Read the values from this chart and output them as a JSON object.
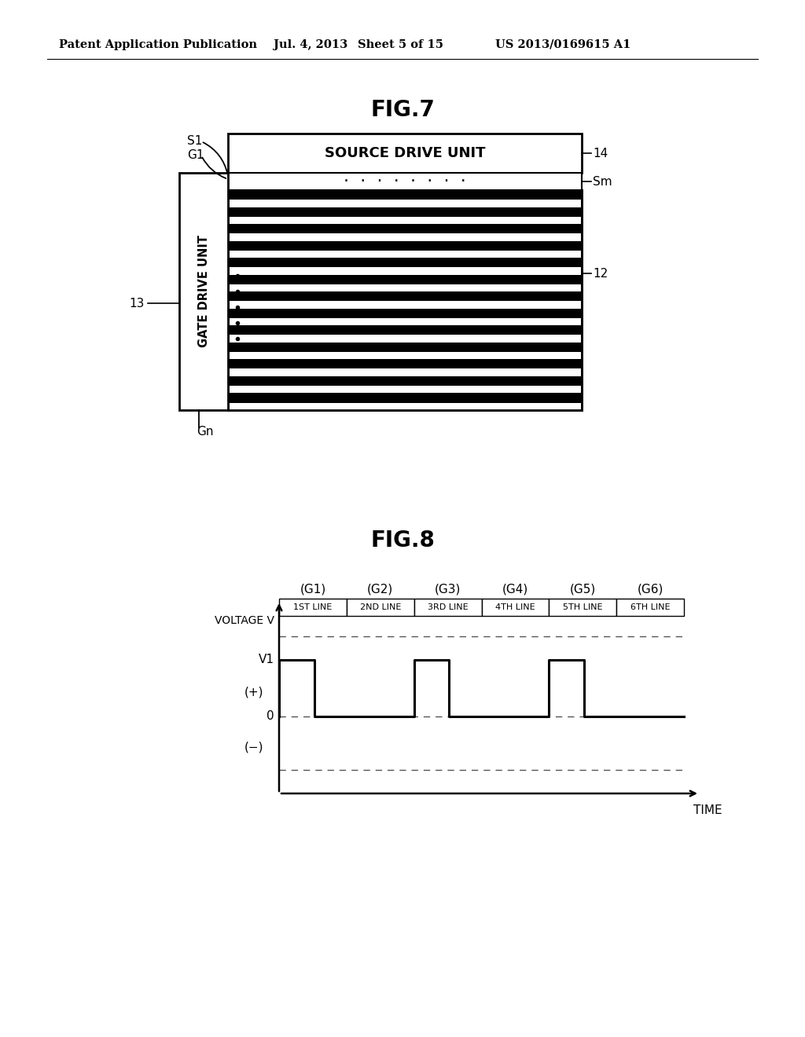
{
  "bg_color": "#ffffff",
  "header_text": "Patent Application Publication",
  "header_date": "Jul. 4, 2013",
  "header_sheet": "Sheet 5 of 15",
  "header_patent": "US 2013/0169615 A1",
  "fig7_title": "FIG.7",
  "fig8_title": "FIG.8",
  "source_drive_label": "SOURCE DRIVE UNIT",
  "gate_drive_label": "GATE DRIVE UNIT",
  "label_14": "14",
  "label_13": "13",
  "label_12": "12",
  "label_S1": "S1",
  "label_G1": "G1",
  "label_Sm": "Sm",
  "label_Gn": "Gn",
  "dots_top": "·  ·  ·  ·  ·  ·  ·  ·",
  "num_stripes": 13,
  "g_labels": [
    "(G1)",
    "(G2)",
    "(G3)",
    "(G4)",
    "(G5)",
    "(G6)"
  ],
  "line_labels": [
    "1ST LINE",
    "2ND LINE",
    "3RD LINE",
    "4TH LINE",
    "5TH LINE",
    "6TH LINE"
  ],
  "voltage_label": "VOLTAGE V",
  "v1_label": "V1",
  "plus_label": "(+)",
  "zero_label": "0",
  "minus_label": "(−)",
  "time_label": "TIME"
}
